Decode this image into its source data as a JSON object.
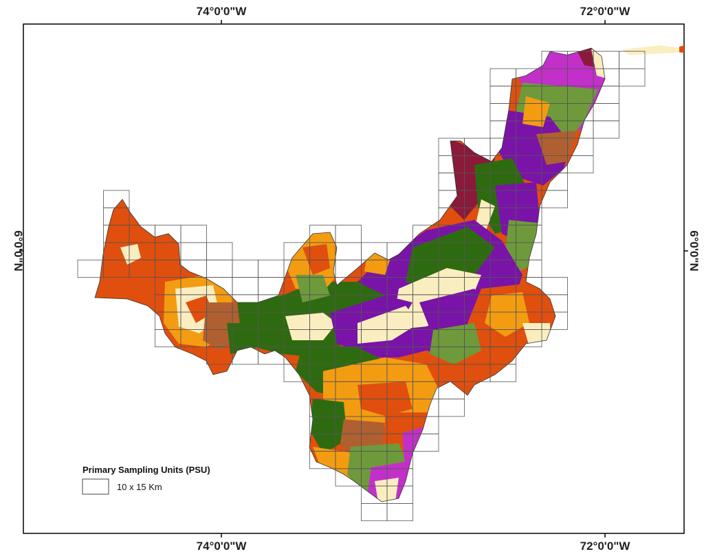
{
  "map": {
    "top_labels": [
      "74°0'0\"W",
      "72°0'0\"W"
    ],
    "bottom_labels": [
      "74°0'0\"W",
      "72°0'0\"W"
    ],
    "left_label": "6°0'0\"N",
    "right_label": "6°0'0\"N"
  },
  "legend": {
    "title": "Primary Sampling Units (PSU)",
    "item_label": "10 x 15 Km"
  },
  "colors": {
    "dark_green": "#2e6b10",
    "orange_red": "#e04f0e",
    "orange": "#f39c12",
    "purple": "#7a13a8",
    "magenta": "#c230c9",
    "olive_green": "#6e9a3c",
    "cream": "#faeec0",
    "brown": "#b06030",
    "maroon": "#8b1a3a"
  }
}
